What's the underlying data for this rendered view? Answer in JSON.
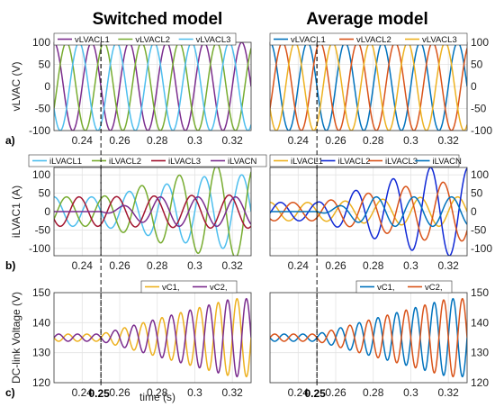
{
  "titles": {
    "left": "Switched model",
    "right": "Average model"
  },
  "colors": {
    "purple": "#7b2d8e",
    "green": "#77ac30",
    "cyan": "#4dbeee",
    "blue": "#0072bd",
    "orange": "#d95319",
    "yellow": "#edb120",
    "darkred": "#a2142f",
    "navy": "#0f28d6"
  },
  "event_marker": {
    "x": 0.25,
    "label": "0.25"
  },
  "xlabel": "time (s)",
  "chart_data": [
    {
      "type": "line",
      "panel": "a",
      "model": "switched",
      "panel_label": "a)",
      "ylabel": "vLVAC (V)",
      "xlim": [
        0.225,
        0.33
      ],
      "ylim": [
        -100,
        100
      ],
      "xticks": [
        0.24,
        0.26,
        0.28,
        0.3,
        0.32
      ],
      "xticklabels": [
        "0.24",
        "0.26",
        "0.28",
        "0.3",
        "0.32"
      ],
      "yticks": [
        -100,
        -50,
        0,
        50,
        100
      ],
      "yticklabels": [
        "-100",
        "-50",
        "0",
        "50",
        "100"
      ],
      "grid": true,
      "legend": "top",
      "series": [
        {
          "name": "vLVACL1",
          "amplitude": 100,
          "frequency_hz": 50,
          "phase_deg": 0,
          "color": "#7b2d8e"
        },
        {
          "name": "vLVACL2",
          "amplitude": 100,
          "frequency_hz": 50,
          "phase_deg": -120,
          "color": "#77ac30"
        },
        {
          "name": "vLVACL3",
          "amplitude": 100,
          "frequency_hz": 50,
          "phase_deg": 120,
          "color": "#4dbeee"
        }
      ]
    },
    {
      "type": "line",
      "panel": "a",
      "model": "average",
      "xlim": [
        0.225,
        0.33
      ],
      "ylim": [
        -100,
        100
      ],
      "xticks": [
        0.24,
        0.26,
        0.28,
        0.3,
        0.32
      ],
      "xticklabels": [
        "0.24",
        "0.26",
        "0.28",
        "0.3",
        "0.32"
      ],
      "yticks": [
        -100,
        -50,
        0,
        50,
        100
      ],
      "yticklabels": [
        "-100",
        "-50",
        "0",
        "50",
        "100"
      ],
      "grid": true,
      "legend": "top",
      "series": [
        {
          "name": "vLVACL1",
          "amplitude": 100,
          "frequency_hz": 50,
          "phase_deg": 0,
          "color": "#0072bd"
        },
        {
          "name": "vLVACL2",
          "amplitude": 100,
          "frequency_hz": 50,
          "phase_deg": -120,
          "color": "#d95319"
        },
        {
          "name": "vLVACL3",
          "amplitude": 100,
          "frequency_hz": 50,
          "phase_deg": 120,
          "color": "#edb120"
        }
      ]
    },
    {
      "type": "line",
      "panel": "b",
      "model": "switched",
      "panel_label": "b)",
      "ylabel": "iLVAC1 (A)",
      "xlim": [
        0.225,
        0.33
      ],
      "ylim": [
        -120,
        120
      ],
      "xticks": [
        0.24,
        0.26,
        0.28,
        0.3,
        0.32
      ],
      "xticklabels": [
        "0.24",
        "0.26",
        "0.28",
        "0.3",
        "0.32"
      ],
      "yticks": [
        -100,
        -50,
        0,
        50,
        100
      ],
      "yticklabels": [
        "-100",
        "-50",
        "0",
        "50",
        "100"
      ],
      "grid": true,
      "legend": "top",
      "series": [
        {
          "name": "iLVACL1",
          "amplitude_before": 40,
          "amplitude_after": 100,
          "frequency_hz": 50,
          "phase_deg": 0,
          "growth_time_s": 0.06,
          "color": "#4dbeee"
        },
        {
          "name": "iLVACL2",
          "amplitude_before": 40,
          "amplitude_after": 125,
          "frequency_hz": 50,
          "phase_deg": -120,
          "growth_time_s": 0.06,
          "color": "#77ac30"
        },
        {
          "name": "iLVACL3",
          "amplitude_before": 40,
          "amplitude_after": 45,
          "frequency_hz": 50,
          "phase_deg": 120,
          "growth_time_s": 0.06,
          "color": "#a2142f"
        },
        {
          "name": "iLVACN",
          "amplitude_before": 0,
          "amplitude_after": 40,
          "frequency_hz": 50,
          "phase_deg": 60,
          "growth_time_s": 0.03,
          "color": "#7b2d8e"
        }
      ]
    },
    {
      "type": "line",
      "panel": "b",
      "model": "average",
      "xlim": [
        0.225,
        0.33
      ],
      "ylim": [
        -120,
        120
      ],
      "xticks": [
        0.24,
        0.26,
        0.28,
        0.3,
        0.32
      ],
      "xticklabels": [
        "0.24",
        "0.26",
        "0.28",
        "0.3",
        "0.32"
      ],
      "yticks": [
        -100,
        -50,
        0,
        50,
        100
      ],
      "yticklabels": [
        "-100",
        "-50",
        "0",
        "50",
        "100"
      ],
      "grid": true,
      "legend": "top",
      "series": [
        {
          "name": "iLVACL1",
          "amplitude_before": 25,
          "amplitude_after": 40,
          "frequency_hz": 50,
          "phase_deg": 0,
          "growth_time_s": 0.06,
          "color": "#edb120"
        },
        {
          "name": "iLVACL2",
          "amplitude_before": 25,
          "amplitude_after": 120,
          "frequency_hz": 50,
          "phase_deg": -100,
          "growth_time_s": 0.06,
          "color": "#0f28d6"
        },
        {
          "name": "iLVACL3",
          "amplitude_before": 25,
          "amplitude_after": 80,
          "frequency_hz": 50,
          "phase_deg": 140,
          "growth_time_s": 0.06,
          "color": "#d95319"
        },
        {
          "name": "iLVACN",
          "amplitude_before": 0,
          "amplitude_after": 40,
          "frequency_hz": 50,
          "phase_deg": 60,
          "growth_time_s": 0.03,
          "color": "#0072bd"
        }
      ]
    },
    {
      "type": "line",
      "panel": "c",
      "model": "switched",
      "panel_label": "c)",
      "ylabel": "DC-link Voltage (V)",
      "xlim": [
        0.225,
        0.33
      ],
      "ylim": [
        120,
        150
      ],
      "xticks": [
        0.24,
        0.26,
        0.28,
        0.3,
        0.32
      ],
      "xticklabels": [
        "0.24",
        "0.26",
        "0.28",
        "0.3",
        "0.32"
      ],
      "yticks": [
        120,
        130,
        140,
        150
      ],
      "yticklabels": [
        "120",
        "130",
        "140",
        "150"
      ],
      "grid": true,
      "legend": "top-right",
      "series": [
        {
          "name": "vC1,",
          "offset": 135,
          "amplitude_before": 1.2,
          "amplitude_after": 13,
          "frequency_hz": 100,
          "phase_deg": 0,
          "growth_time_s": 0.07,
          "color": "#edb120"
        },
        {
          "name": "vC2,",
          "offset": 135,
          "amplitude_before": 1.2,
          "amplitude_after": 13,
          "frequency_hz": 100,
          "phase_deg": 180,
          "growth_time_s": 0.07,
          "color": "#7b2d8e"
        }
      ]
    },
    {
      "type": "line",
      "panel": "c",
      "model": "average",
      "xlim": [
        0.225,
        0.33
      ],
      "ylim": [
        120,
        150
      ],
      "xticks": [
        0.24,
        0.26,
        0.28,
        0.3,
        0.32
      ],
      "xticklabels": [
        "0.24",
        "0.26",
        "0.28",
        "0.3",
        "0.32"
      ],
      "yticks": [
        120,
        130,
        140,
        150
      ],
      "yticklabels": [
        "120",
        "130",
        "140",
        "150"
      ],
      "grid": true,
      "legend": "top-right",
      "series": [
        {
          "name": "vC1,",
          "offset": 135,
          "amplitude_before": 1.2,
          "amplitude_after": 13,
          "frequency_hz": 100,
          "phase_deg": 0,
          "growth_time_s": 0.07,
          "color": "#0072bd"
        },
        {
          "name": "vC2,",
          "offset": 135,
          "amplitude_before": 1.2,
          "amplitude_after": 13,
          "frequency_hz": 100,
          "phase_deg": 180,
          "growth_time_s": 0.07,
          "color": "#d95319"
        }
      ]
    }
  ]
}
